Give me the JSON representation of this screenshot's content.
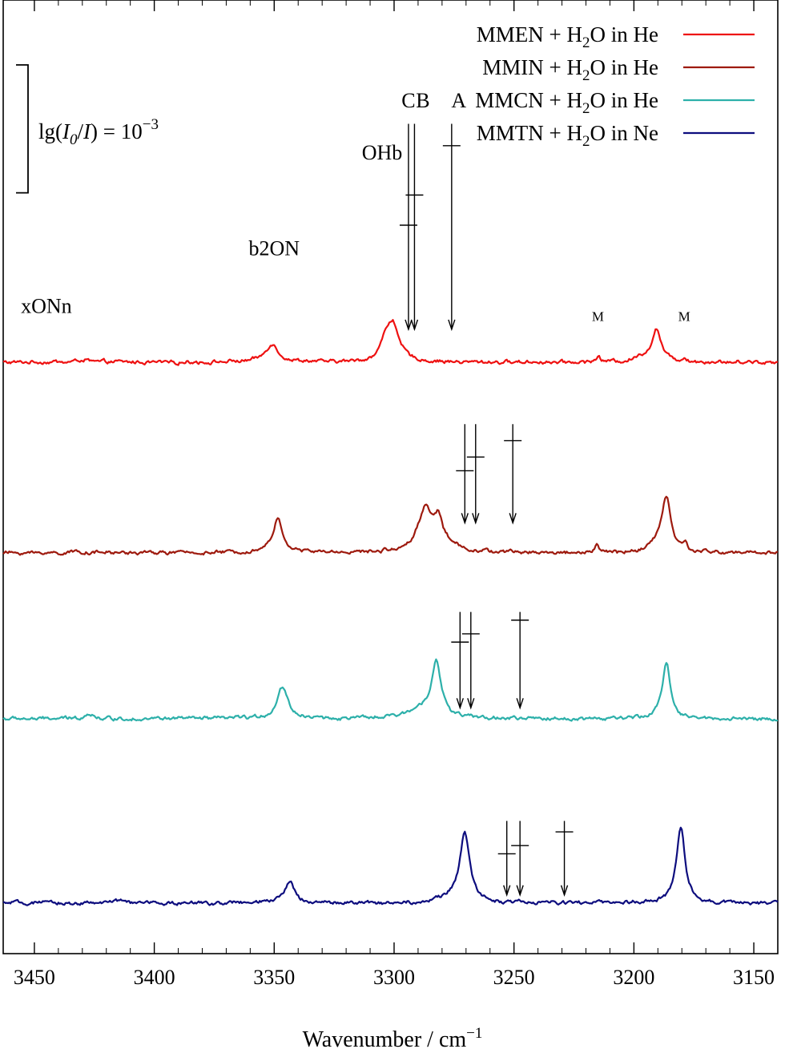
{
  "chart_data": {
    "type": "line",
    "title": "",
    "xlabel": "Wavenumber / cm",
    "xlabel_sup": "−1",
    "ylabel": "",
    "xlim": [
      3463,
      3140
    ],
    "x_reversed": true,
    "xticks": [
      3450,
      3400,
      3350,
      3300,
      3250,
      3200,
      3150
    ],
    "grid": false,
    "legend_position": "top-right",
    "scale_bar": {
      "text_pre": "lg(",
      "i0": "I",
      "i0_sub": "0",
      "slash": "/",
      "i": "I",
      "text_post": ") = 10",
      "sup": "−3",
      "value": 0.001
    },
    "series": [
      {
        "name": "MMEN + H2O in He",
        "legend": {
          "pre": "MMEN + H",
          "sub": "2",
          "post": "O in He"
        },
        "color": "#ee1111",
        "baseline": 0,
        "peak_scale": 1,
        "peaks": [
          [
            3351,
            0.33,
            3.2
          ],
          [
            3303.5,
            0.38,
            2.5
          ],
          [
            3300.5,
            0.6,
            2.4
          ],
          [
            3296,
            0.08,
            3
          ],
          [
            3190.5,
            0.58,
            2.4
          ],
          [
            3196,
            0.08,
            4
          ],
          [
            3215,
            0.1,
            1
          ],
          [
            3179,
            0.07,
            1
          ],
          [
            3430,
            0.04,
            3
          ]
        ],
        "labels": [
          {
            "text": "xONn",
            "x": 3445,
            "h": 0.9,
            "size": "big"
          },
          {
            "text": "b2ON",
            "x": 3350,
            "h": 1.95,
            "size": "big"
          },
          {
            "text": "OHb",
            "x": 3305,
            "h": 3.7,
            "size": "big"
          },
          {
            "text": "C",
            "x": 3294,
            "h": 4.65,
            "size": "big"
          },
          {
            "text": "B",
            "x": 3288,
            "h": 4.65,
            "size": "big"
          },
          {
            "text": "A",
            "x": 3273,
            "h": 4.65,
            "size": "big"
          },
          {
            "text": "M",
            "x": 3215,
            "h": 0.75,
            "size": "small"
          },
          {
            "text": "M",
            "x": 3179,
            "h": 0.75,
            "size": "small"
          }
        ],
        "markers": [
          {
            "x": 3294,
            "top": 4.35,
            "bottom": 0.6,
            "bar": 2.5
          },
          {
            "x": 3291.5,
            "top": 4.35,
            "bottom": 0.6,
            "bar": 3.05
          },
          {
            "x": 3276,
            "top": 4.35,
            "bottom": 0.6,
            "bar": 3.95
          }
        ]
      },
      {
        "name": "MMIN + H2O in He",
        "legend": {
          "pre": "MMIN + H",
          "sub": "2",
          "post": "O in He"
        },
        "color": "#9e1a0e",
        "baseline": 0,
        "peak_scale": 1,
        "peaks": [
          [
            3348.5,
            0.6,
            2.6
          ],
          [
            3287,
            0.78,
            3.8
          ],
          [
            3281.5,
            0.45,
            2.0
          ],
          [
            3278,
            0.1,
            6
          ],
          [
            3186.5,
            1.0,
            2.4
          ],
          [
            3191,
            0.1,
            3
          ],
          [
            3215.5,
            0.14,
            1
          ],
          [
            3178.5,
            0.12,
            1
          ],
          [
            3432,
            0.03,
            3
          ]
        ],
        "labels": [],
        "markers": [
          {
            "x": 3270.5,
            "top": 2.35,
            "bottom": 0.55,
            "bar": 1.5
          },
          {
            "x": 3266,
            "top": 2.35,
            "bottom": 0.55,
            "bar": 1.75
          },
          {
            "x": 3250.5,
            "top": 2.35,
            "bottom": 0.55,
            "bar": 2.05
          }
        ]
      },
      {
        "name": "MMCN + H2O in He",
        "legend": {
          "pre": "MMCN + H",
          "sub": "2",
          "post": "O in He"
        },
        "color": "#2db0aa",
        "baseline": 0,
        "peak_scale": 1,
        "peaks": [
          [
            3346.5,
            0.58,
            2.7
          ],
          [
            3282.5,
            1.0,
            2.5
          ],
          [
            3289,
            0.15,
            6
          ],
          [
            3186.5,
            1.05,
            2.0
          ],
          [
            3427.5,
            0.1,
            2.2
          ]
        ],
        "labels": [],
        "markers": [
          {
            "x": 3272.5,
            "top": 1.95,
            "bottom": 0.2,
            "bar": 1.4
          },
          {
            "x": 3268,
            "top": 1.95,
            "bottom": 0.2,
            "bar": 1.55
          },
          {
            "x": 3247.5,
            "top": 1.95,
            "bottom": 0.2,
            "bar": 1.8
          }
        ]
      },
      {
        "name": "MMTN + H2O in Ne",
        "legend": {
          "pre": "MMTN + H",
          "sub": "2",
          "post": "O in Ne"
        },
        "color": "#0d0d7e",
        "baseline": 0,
        "peak_scale": 1,
        "peaks": [
          [
            3343.5,
            0.4,
            2.5
          ],
          [
            3270.5,
            1.25,
            2.4
          ],
          [
            3275,
            0.1,
            5
          ],
          [
            3180.5,
            1.4,
            2.2
          ],
          [
            3414,
            0.06,
            2
          ],
          [
            3215,
            0.04,
            1
          ]
        ],
        "labels": [],
        "markers": [
          {
            "x": 3253,
            "top": 1.5,
            "bottom": 0.15,
            "bar": 0.9
          },
          {
            "x": 3247.5,
            "top": 1.5,
            "bottom": 0.15,
            "bar": 1.05
          },
          {
            "x": 3229,
            "top": 1.5,
            "bottom": 0.15,
            "bar": 1.3
          }
        ]
      }
    ]
  }
}
